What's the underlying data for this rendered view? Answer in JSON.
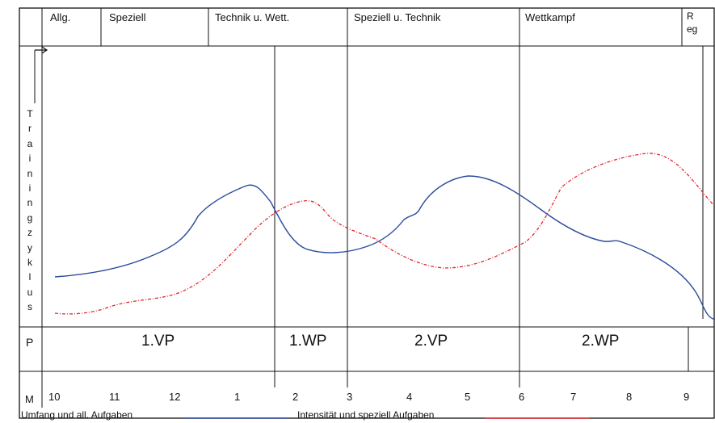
{
  "header": {
    "segments": [
      "Allg.",
      "Speziell",
      "Technik u. Wett.",
      "Speziell u. Technik",
      "Wettkampf"
    ],
    "last_segment": [
      "R",
      "eg"
    ]
  },
  "y_axis": {
    "title_letters": [
      "T",
      "r",
      "a",
      "i",
      "n",
      "i",
      "n",
      "g",
      "z",
      "y",
      "k",
      "l",
      "u",
      "s"
    ]
  },
  "row_labels": {
    "p": "P",
    "m": "M"
  },
  "phases": [
    "1.VP",
    "1.WP",
    "2.VP",
    "2.WP"
  ],
  "months": [
    "10",
    "11",
    "12",
    "1",
    "2",
    "3",
    "4",
    "5",
    "6",
    "7",
    "8",
    "9"
  ],
  "legend": {
    "volume": "Umfang und all. Aufgaben",
    "intensity": "Intensität und speziell Aufgaben"
  },
  "colors": {
    "volume": "#2a4b9b",
    "intensity": "#e0282e",
    "grid": "#111111"
  }
}
